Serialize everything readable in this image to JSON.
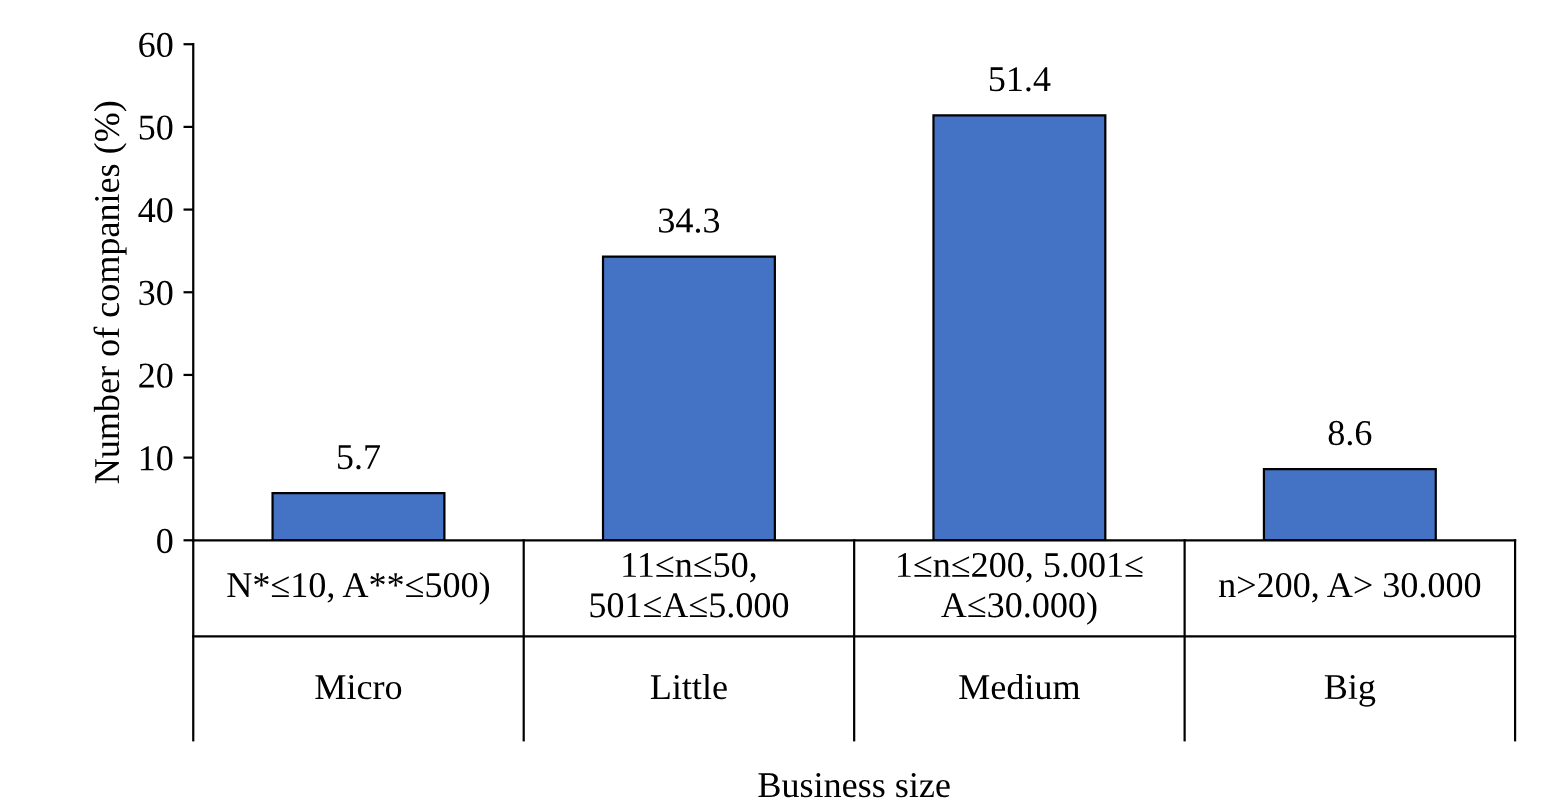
{
  "chart_data": {
    "type": "bar",
    "xlabel": "Business size",
    "ylabel": "Number of companies (%)",
    "categories": [
      "Micro",
      "Little",
      "Medium",
      "Big"
    ],
    "values": [
      5.7,
      34.3,
      51.4,
      8.6
    ],
    "color": "#4472c4",
    "data_labels": true,
    "ylim": [
      0,
      60
    ],
    "yticks": [
      0,
      10,
      20,
      30,
      40,
      50,
      60
    ],
    "grid": false,
    "annotations": [
      "N*≤10, A**≤500)",
      "11≤n≤50,\n501≤A≤5.000",
      "1≤n≤200, 5.001≤\nA≤30.000)",
      "n>200, A> 30.000"
    ]
  }
}
